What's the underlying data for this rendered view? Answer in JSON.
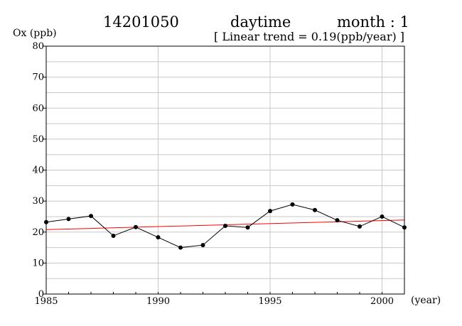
{
  "header": {
    "station": "14201050",
    "period": "daytime",
    "month": "month : 1",
    "trend": "[ Linear trend = 0.19(ppb/year) ]"
  },
  "chart_data": {
    "type": "line",
    "ylabel": "Ox (ppb)",
    "xlabel": "(year)",
    "xlim": [
      1985,
      2001
    ],
    "ylim": [
      0,
      80
    ],
    "x_ticks": [
      1985,
      1990,
      1995,
      2000
    ],
    "y_ticks": [
      0,
      10,
      20,
      30,
      40,
      50,
      60,
      70,
      80
    ],
    "grid": true,
    "series": [
      {
        "color": "#000000",
        "marker": "circle",
        "x": [
          1985,
          1986,
          1987,
          1988,
          1989,
          1990,
          1991,
          1992,
          1993,
          1994,
          1995,
          1996,
          1997,
          1998,
          1999,
          2000,
          2001
        ],
        "values": [
          23.2,
          24.2,
          25.2,
          18.8,
          21.6,
          18.3,
          15.0,
          15.8,
          22.0,
          21.5,
          26.8,
          28.9,
          27.1,
          23.8,
          21.8,
          25.0,
          21.5
        ]
      }
    ],
    "trend_line": {
      "color": "#ff0000",
      "slope": 0.19,
      "x": [
        1985,
        2001
      ],
      "values": [
        20.8,
        23.9
      ]
    }
  }
}
